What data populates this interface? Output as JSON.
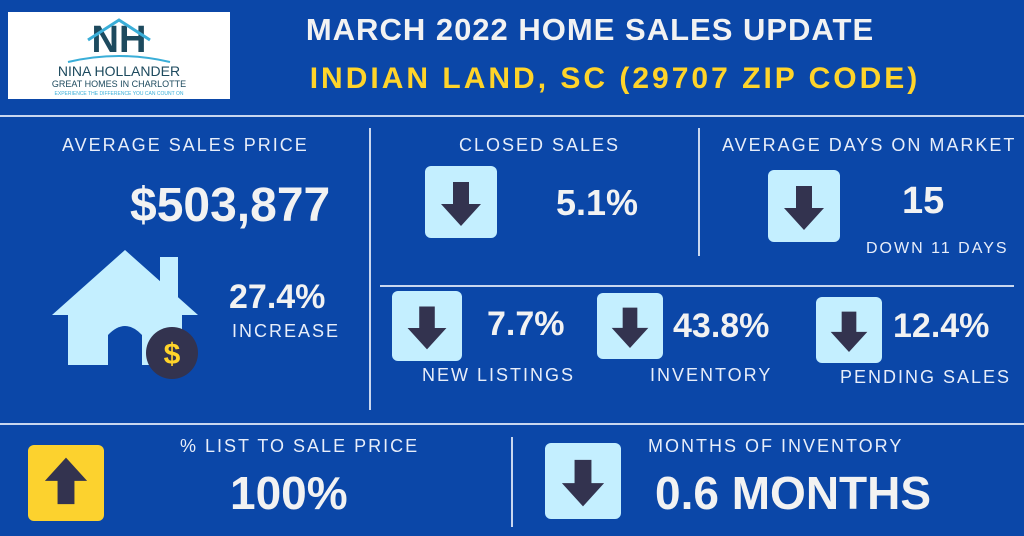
{
  "logo": {
    "initials": "NH",
    "name": "NINA HOLLANDER",
    "tagline": "GREAT HOMES IN CHARLOTTE",
    "slogan": "EXPERIENCE THE DIFFERENCE YOU CAN COUNT ON"
  },
  "header": {
    "title": "MARCH 2022 HOME SALES UPDATE",
    "subtitle": "INDIAN LAND, SC (29707 ZIP CODE)"
  },
  "avg_price": {
    "label": "AVERAGE SALES PRICE",
    "value": "$503,877",
    "change": "27.4%",
    "change_label": "INCREASE"
  },
  "closed": {
    "label": "CLOSED SALES",
    "value": "5.1%",
    "direction": "down"
  },
  "dom": {
    "label": "AVERAGE DAYS ON MARKET",
    "value": "15",
    "sub": "DOWN 11 DAYS",
    "direction": "down"
  },
  "new_listings": {
    "label": "NEW LISTINGS",
    "value": "7.7%",
    "direction": "down"
  },
  "inventory": {
    "label": "INVENTORY",
    "value": "43.8%",
    "direction": "down"
  },
  "pending": {
    "label": "PENDING SALES",
    "value": "12.4%",
    "direction": "down"
  },
  "list_to_sale": {
    "label": "% LIST TO SALE PRICE",
    "value": "100%",
    "direction": "up"
  },
  "months_inv": {
    "label": "MONTHS OF INVENTORY",
    "value": "0.6 MONTHS",
    "direction": "down"
  },
  "colors": {
    "bg": "#0b47a8",
    "accent": "#ffd42a",
    "tile": "#c4efff",
    "arrow": "#33334f"
  }
}
